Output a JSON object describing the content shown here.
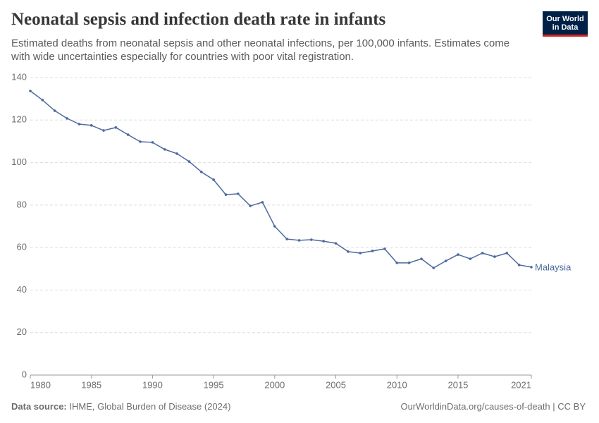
{
  "chart_data": {
    "type": "line",
    "title": "Neonatal sepsis and infection death rate in infants",
    "subtitle": "Estimated deaths from neonatal sepsis and other neonatal infections, per 100,000 infants. Estimates come with wide uncertainties especially for countries with poor vital registration.",
    "logo": [
      "Our World",
      "in Data"
    ],
    "source_label": "Data source:",
    "source": "IHME, Global Burden of Disease (2024)",
    "url": "OurWorldinData.org/causes-of-death | CC BY",
    "x": [
      1980,
      1981,
      1982,
      1983,
      1984,
      1985,
      1986,
      1987,
      1988,
      1989,
      1990,
      1991,
      1992,
      1993,
      1994,
      1995,
      1996,
      1997,
      1998,
      1999,
      2000,
      2001,
      2002,
      2003,
      2004,
      2005,
      2006,
      2007,
      2008,
      2009,
      2010,
      2011,
      2012,
      2013,
      2014,
      2015,
      2016,
      2017,
      2018,
      2019,
      2020,
      2021
    ],
    "series": [
      {
        "name": "Malaysia",
        "color": "#4c6a9c",
        "values": [
          133.7,
          129.4,
          124.4,
          120.8,
          118.1,
          117.5,
          115.1,
          116.5,
          113.1,
          109.8,
          109.5,
          106.2,
          104.2,
          100.5,
          95.6,
          91.9,
          84.9,
          85.3,
          79.6,
          81.3,
          70.0,
          64.0,
          63.4,
          63.7,
          63.0,
          62.0,
          58.1,
          57.4,
          58.4,
          59.4,
          52.8,
          52.8,
          54.7,
          50.4,
          53.7,
          56.7,
          54.7,
          57.4,
          55.7,
          57.4,
          51.8,
          50.8
        ]
      }
    ],
    "xlim": [
      1980,
      2021
    ],
    "xticks": [
      1980,
      1985,
      1990,
      1995,
      2000,
      2005,
      2010,
      2015,
      2021
    ],
    "ylim": [
      0,
      140
    ],
    "yticks": [
      0,
      20,
      40,
      60,
      80,
      100,
      120,
      140
    ],
    "grid": true
  }
}
